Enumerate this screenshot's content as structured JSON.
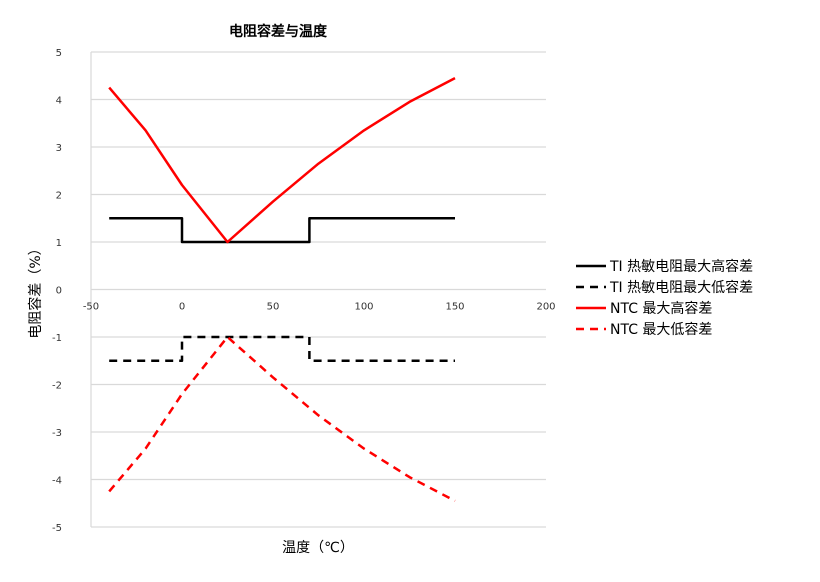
{
  "chart_data": {
    "type": "line",
    "title": "电阻容差与温度",
    "xlabel": "温度（℃）",
    "ylabel": "电阻容差（%）",
    "xlim": [
      -50,
      200
    ],
    "ylim": [
      -5,
      5
    ],
    "x_ticks": [
      -50,
      0,
      50,
      100,
      150,
      200
    ],
    "y_ticks": [
      5,
      4,
      3,
      2,
      1,
      0,
      -1,
      -2,
      -3,
      -4,
      -5
    ],
    "grid": "horizontal",
    "legend_position": "right",
    "series": [
      {
        "name": "TI 热敏电阻最大高容差",
        "color": "#000000",
        "dash": "solid",
        "points": [
          [
            -40,
            1.5
          ],
          [
            0,
            1.5
          ],
          [
            0,
            1.0
          ],
          [
            70,
            1.0
          ],
          [
            70,
            1.5
          ],
          [
            150,
            1.5
          ]
        ]
      },
      {
        "name": "TI 热敏电阻最大低容差",
        "color": "#000000",
        "dash": "dashed",
        "points": [
          [
            -40,
            -1.5
          ],
          [
            0,
            -1.5
          ],
          [
            0,
            -1.0
          ],
          [
            70,
            -1.0
          ],
          [
            70,
            -1.5
          ],
          [
            150,
            -1.5
          ]
        ]
      },
      {
        "name": "NTC 最大高容差",
        "color": "#ff0000",
        "dash": "solid",
        "points": [
          [
            -40,
            4.25
          ],
          [
            -20,
            3.35
          ],
          [
            0,
            2.2
          ],
          [
            25,
            1.0
          ],
          [
            50,
            1.85
          ],
          [
            75,
            2.65
          ],
          [
            100,
            3.35
          ],
          [
            125,
            3.95
          ],
          [
            150,
            4.45
          ]
        ]
      },
      {
        "name": "NTC 最大低容差",
        "color": "#ff0000",
        "dash": "dashed",
        "points": [
          [
            -40,
            -4.25
          ],
          [
            -20,
            -3.35
          ],
          [
            0,
            -2.2
          ],
          [
            25,
            -1.0
          ],
          [
            50,
            -1.85
          ],
          [
            75,
            -2.65
          ],
          [
            100,
            -3.35
          ],
          [
            125,
            -3.95
          ],
          [
            150,
            -4.45
          ]
        ]
      }
    ]
  }
}
